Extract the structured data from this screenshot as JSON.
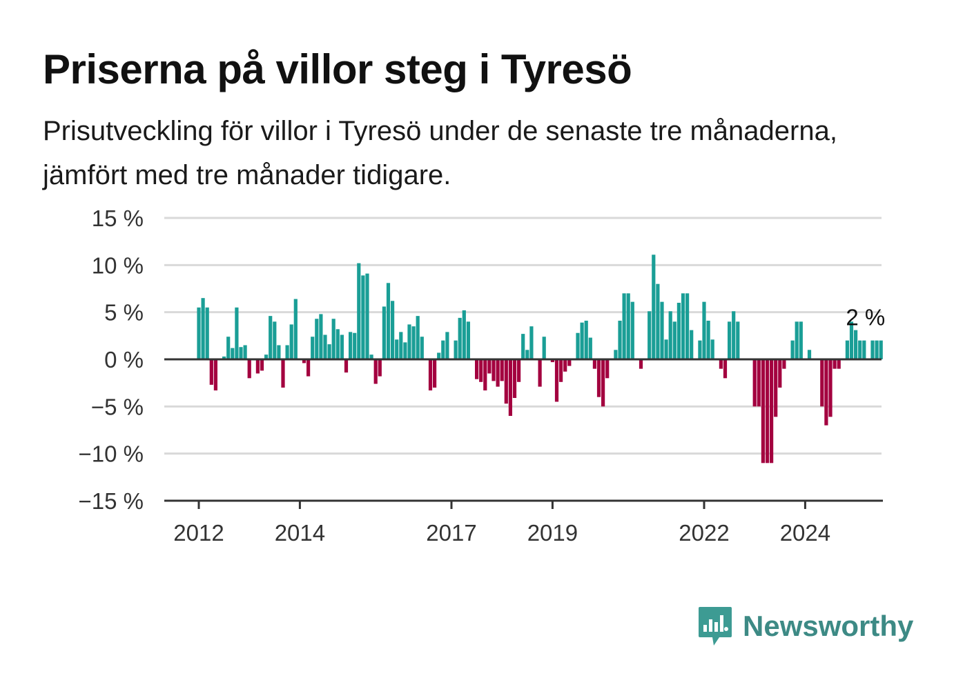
{
  "header": {
    "title": "Priserna på villor steg i Tyresö",
    "subtitle": "Prisutveckling för villor i Tyresö under de senaste tre månaderna, jämfört med tre månader tidigare."
  },
  "brand": {
    "name": "Newsworthy",
    "icon": "newsworthy-logo-icon",
    "color": "#3d9b93"
  },
  "colors": {
    "positive": "#1a9e96",
    "negative": "#a3003f",
    "grid": "#d9d9d9",
    "zero": "#333333"
  },
  "chart_data": {
    "type": "bar",
    "title": "Priserna på villor steg i Tyresö",
    "subtitle": "Prisutveckling för villor i Tyresö under de senaste tre månaderna, jämfört med tre månader tidigare.",
    "ylim": [
      -15,
      15
    ],
    "yticks": [
      15,
      10,
      5,
      0,
      -5,
      -10,
      -15
    ],
    "ytick_labels": [
      "15 %",
      "10 %",
      "5 %",
      "0 %",
      "−5 %",
      "−10 %",
      "−15 %"
    ],
    "xticks": [
      {
        "year": 2012,
        "label": "2012"
      },
      {
        "year": 2014,
        "label": "2014"
      },
      {
        "year": 2017,
        "label": "2017"
      },
      {
        "year": 2019,
        "label": "2019"
      },
      {
        "year": 2022,
        "label": "2022"
      },
      {
        "year": 2024,
        "label": "2024"
      }
    ],
    "grid": true,
    "annotation": {
      "label": "2 %",
      "value": 2
    },
    "start": "2012-01",
    "values": [
      5.5,
      6.5,
      5.5,
      -2.7,
      -3.3,
      0,
      0.3,
      2.4,
      1.2,
      5.5,
      1.3,
      1.5,
      -2.0,
      0,
      -1.5,
      -1.2,
      0.5,
      4.6,
      4.0,
      1.5,
      -3.0,
      1.5,
      3.7,
      6.4,
      0,
      -0.4,
      -1.8,
      2.4,
      4.3,
      4.8,
      2.6,
      1.6,
      4.3,
      3.2,
      2.6,
      -1.4,
      2.9,
      2.8,
      10.2,
      8.9,
      9.1,
      0.5,
      -2.6,
      -1.8,
      5.6,
      8.1,
      6.2,
      2.1,
      2.9,
      1.8,
      3.7,
      3.5,
      4.6,
      2.4,
      0,
      -3.3,
      -3.0,
      0.7,
      2.0,
      2.9,
      0,
      2.0,
      4.4,
      5.2,
      4.0,
      0,
      -2.1,
      -2.4,
      -3.3,
      -1.5,
      -2.3,
      -2.9,
      -2.3,
      -4.7,
      -6.0,
      -4.1,
      -2.4,
      2.7,
      1.0,
      3.5,
      0,
      -2.9,
      2.4,
      0,
      -0.3,
      -4.5,
      -2.4,
      -1.3,
      -0.7,
      0,
      2.8,
      3.9,
      4.1,
      2.3,
      -1.0,
      -4.0,
      -5.0,
      -2.0,
      0,
      1.0,
      4.1,
      7.0,
      7.0,
      6.1,
      0,
      -1.0,
      0,
      5.1,
      11.1,
      8.0,
      6.1,
      2.1,
      5.1,
      4.0,
      6.0,
      7.0,
      7.0,
      3.1,
      0,
      2.0,
      6.1,
      4.1,
      2.1,
      0,
      -1.0,
      -2.0,
      4.0,
      5.1,
      4.0,
      0,
      0,
      0,
      -5.0,
      -5.0,
      -11.0,
      -11.0,
      -11.0,
      -6.1,
      -3.0,
      -1.0,
      0,
      2.0,
      4.0,
      4.0,
      0,
      1.0,
      0,
      0,
      -5.0,
      -7.0,
      -6.1,
      -1.0,
      -1.0,
      0,
      2.0,
      4.0,
      3.1,
      2.0,
      2.0,
      0,
      2.0,
      2.0,
      2.0
    ]
  }
}
